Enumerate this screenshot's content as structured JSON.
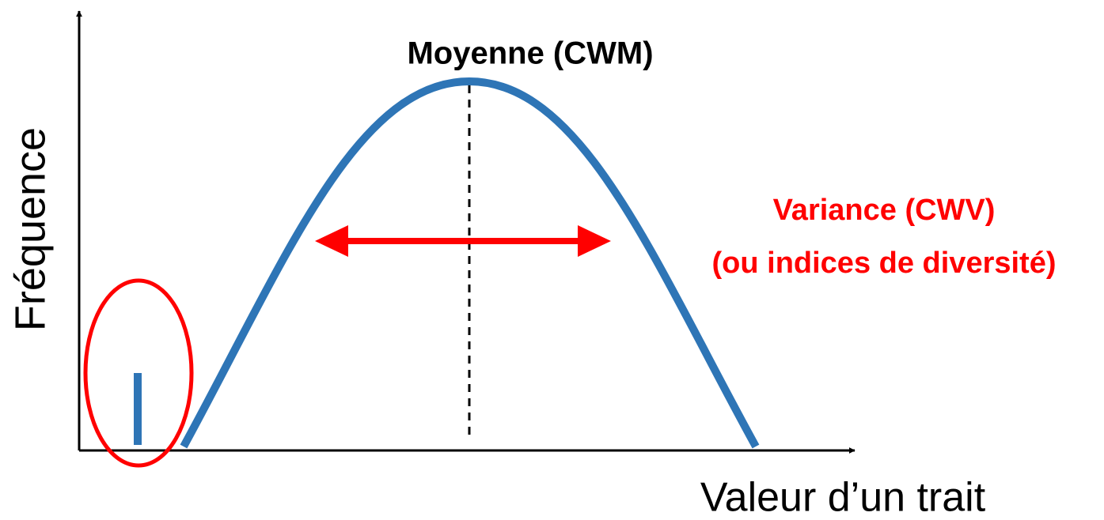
{
  "annotations": {
    "mean": "Moyenne (CWM)",
    "variance": "Variance (CWV)",
    "variance_note": "(ou indices de diversité)"
  },
  "axes": {
    "y_label": "Fréquence",
    "x_label": "Valeur d’un trait"
  }
}
